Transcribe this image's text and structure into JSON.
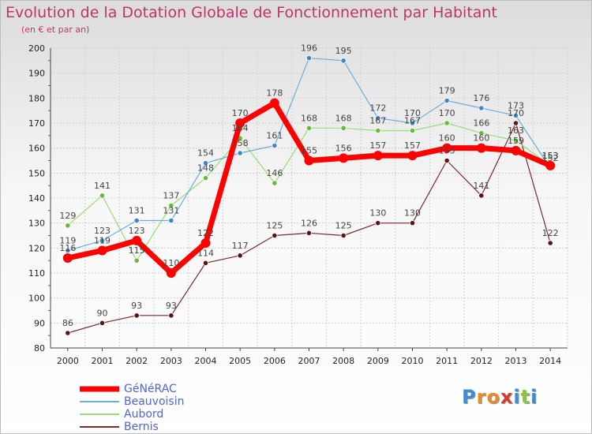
{
  "title": "Evolution de la Dotation Globale de Fonctionnement par Habitant",
  "subtitle": "(en € et par an)",
  "logo": {
    "letters": [
      "P",
      "r",
      "o",
      "x",
      "i",
      "t",
      "i"
    ],
    "colors": [
      "#3a8ed8",
      "#e8892a",
      "#e8892a",
      "#d63a2a",
      "#3a8ed8",
      "#8cc63f",
      "#3a8ed8"
    ]
  },
  "chart_data": {
    "type": "line",
    "title": "Evolution de la Dotation Globale de Fonctionnement par Habitant",
    "subtitle": "(en € et par an)",
    "x": [
      "2000",
      "2001",
      "2002",
      "2003",
      "2004",
      "2005",
      "2006",
      "2007",
      "2008",
      "2009",
      "2010",
      "2011",
      "2012",
      "2013",
      "2014"
    ],
    "ylim": [
      80,
      200
    ],
    "yticks": [
      80,
      90,
      100,
      110,
      120,
      130,
      140,
      150,
      160,
      170,
      180,
      190,
      200
    ],
    "grid": true,
    "legend_position": "bottom-left",
    "series": [
      {
        "name": "Bernis",
        "color": "#7a2a2a",
        "marker": "#5a1414",
        "width": 1.2,
        "values": [
          86,
          90,
          93,
          93,
          114,
          117,
          125,
          126,
          125,
          130,
          130,
          155,
          141,
          170,
          122
        ],
        "labels": [
          "86",
          "90",
          "93",
          "93",
          "114",
          "117",
          "125",
          "126",
          "125",
          "130",
          "130",
          "155",
          "141",
          "170",
          "122"
        ]
      },
      {
        "name": "Aubord",
        "color": "#99dd77",
        "marker": "#66bb33",
        "width": 1.2,
        "values": [
          129,
          141,
          115,
          137,
          148,
          164,
          146,
          168,
          168,
          167,
          167,
          170,
          166,
          163,
          153
        ],
        "labels": [
          "129",
          "141",
          "115",
          "137",
          "148",
          "164",
          "146",
          "168",
          "168",
          "167",
          "167",
          "170",
          "166",
          "163",
          "153"
        ]
      },
      {
        "name": "Beauvoisin",
        "color": "#6aaee0",
        "marker": "#3e86c8",
        "width": 1.2,
        "values": [
          119,
          123,
          131,
          131,
          154,
          158,
          161,
          196,
          195,
          172,
          170,
          179,
          176,
          173,
          152
        ],
        "labels": [
          "119",
          "123",
          "131",
          "131",
          "154",
          "158",
          "161",
          "196",
          "195",
          "172",
          "170",
          "179",
          "176",
          "173",
          "152"
        ]
      },
      {
        "name": "GéNéRAC",
        "color": "#ff0000",
        "marker": "#ff0000",
        "width": 7,
        "values": [
          116,
          119,
          123,
          110,
          122,
          170,
          178,
          155,
          156,
          157,
          157,
          160,
          160,
          159,
          153
        ],
        "labels": [
          "116",
          "119",
          "123",
          "110",
          "122",
          "170",
          "178",
          "155",
          "156",
          "157",
          "157",
          "160",
          "160",
          "159",
          "153"
        ]
      }
    ]
  },
  "legend": [
    {
      "name": "GéNéRAC",
      "color": "#ff0000",
      "width": 7
    },
    {
      "name": "Beauvoisin",
      "color": "#6aaee0",
      "width": 2
    },
    {
      "name": "Aubord",
      "color": "#99dd77",
      "width": 2
    },
    {
      "name": "Bernis",
      "color": "#7a2a2a",
      "width": 2
    }
  ]
}
